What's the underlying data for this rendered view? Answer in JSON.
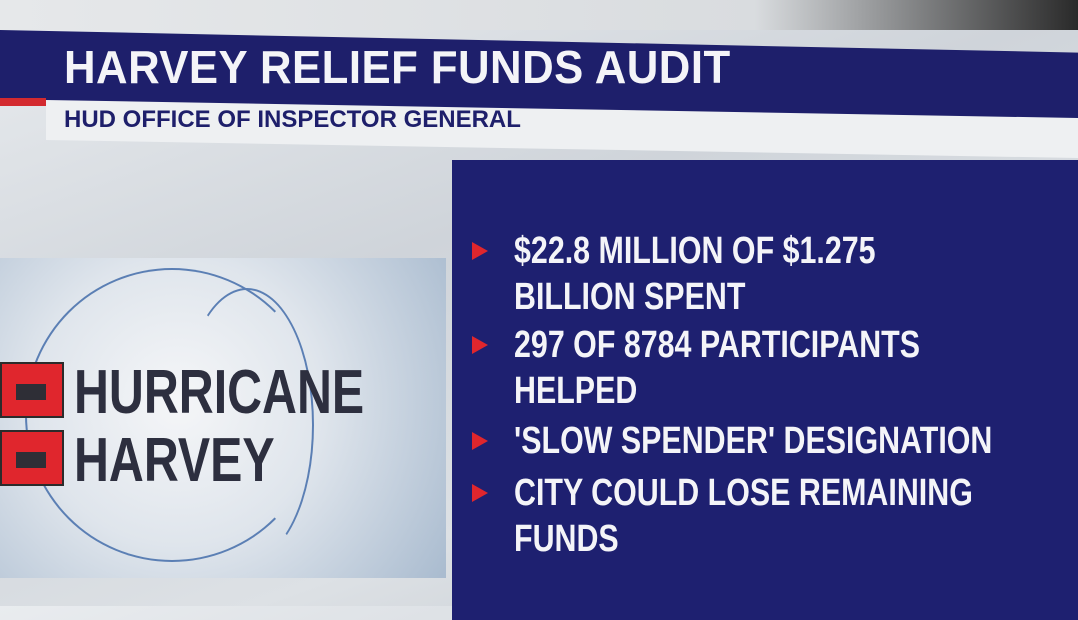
{
  "header": {
    "title": "HARVEY RELIEF FUNDS AUDIT",
    "subtitle": "HUD OFFICE OF INSPECTOR GENERAL"
  },
  "logo": {
    "line1": "HURRICANE",
    "line2": "HARVEY",
    "icon": "hurricane-warning-flag-icon"
  },
  "bullets": [
    {
      "text": "$22.8 MILLION OF $1.275\nBILLION SPENT"
    },
    {
      "text": "297 OF 8784 PARTICIPANTS\nHELPED"
    },
    {
      "text": "'SLOW SPENDER' DESIGNATION"
    },
    {
      "text": "CITY COULD LOSE REMAINING\nFUNDS"
    }
  ],
  "colors": {
    "navy": "#1e1f6b",
    "red": "#e0262d",
    "white": "#f4f4f8"
  }
}
